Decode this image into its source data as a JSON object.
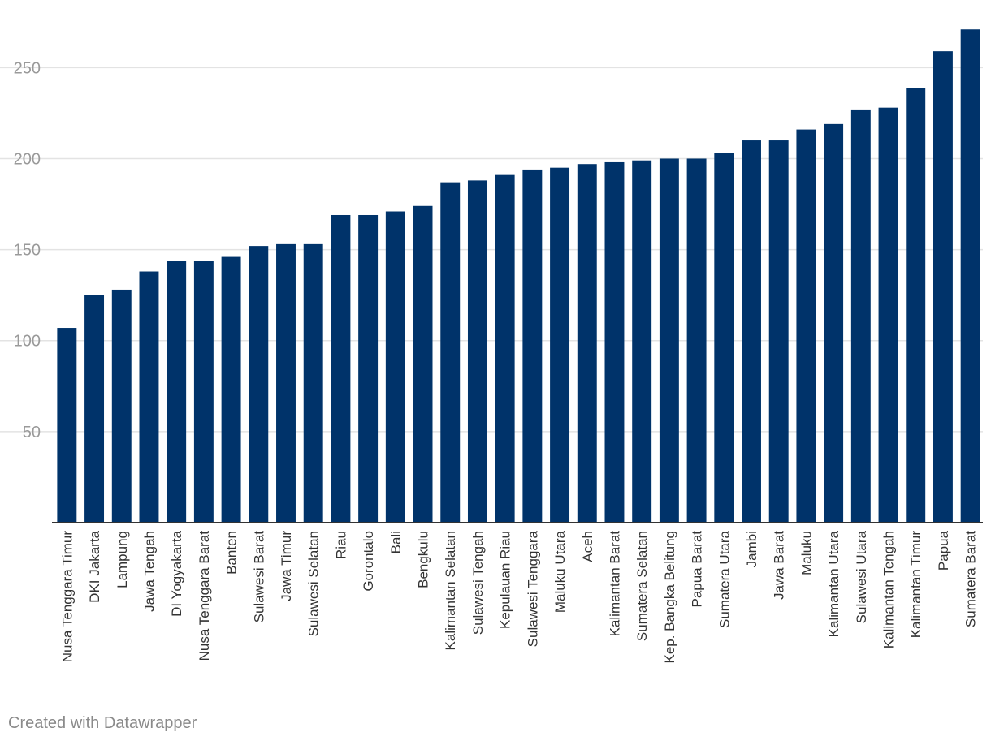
{
  "credit": "Created with Datawrapper",
  "colors": {
    "bar": "#00336a",
    "grid": "#e3e3e3",
    "axis": "#333333",
    "tick_text": "#9a9a9a",
    "label_text": "#333333"
  },
  "chart_data": {
    "type": "bar",
    "title": "",
    "xlabel": "",
    "ylabel": "",
    "ylim": [
      0,
      272
    ],
    "yticks": [
      50,
      100,
      150,
      200,
      250
    ],
    "grid": true,
    "categories": [
      "Nusa Tenggara Timur",
      "DKI Jakarta",
      "Lampung",
      "Jawa Tengah",
      "DI Yogyakarta",
      "Nusa Tenggara Barat",
      "Banten",
      "Sulawesi Barat",
      "Jawa Timur",
      "Sulawesi Selatan",
      "Riau",
      "Gorontalo",
      "Bali",
      "Bengkulu",
      "Kalimantan Selatan",
      "Sulawesi Tengah",
      "Kepulauan Riau",
      "Sulawesi Tenggara",
      "Maluku Utara",
      "Aceh",
      "Kalimantan Barat",
      "Sumatera Selatan",
      "Kep. Bangka Belitung",
      "Papua Barat",
      "Sumatera Utara",
      "Jambi",
      "Jawa Barat",
      "Maluku",
      "Kalimantan Utara",
      "Sulawesi Utara",
      "Kalimantan Tengah",
      "Kalimantan Timur",
      "Papua",
      "Sumatera Barat"
    ],
    "values": [
      107,
      125,
      128,
      138,
      144,
      144,
      146,
      152,
      153,
      153,
      169,
      169,
      171,
      174,
      187,
      188,
      191,
      194,
      195,
      197,
      198,
      199,
      200,
      200,
      203,
      210,
      210,
      216,
      219,
      227,
      228,
      239,
      259,
      271
    ]
  }
}
